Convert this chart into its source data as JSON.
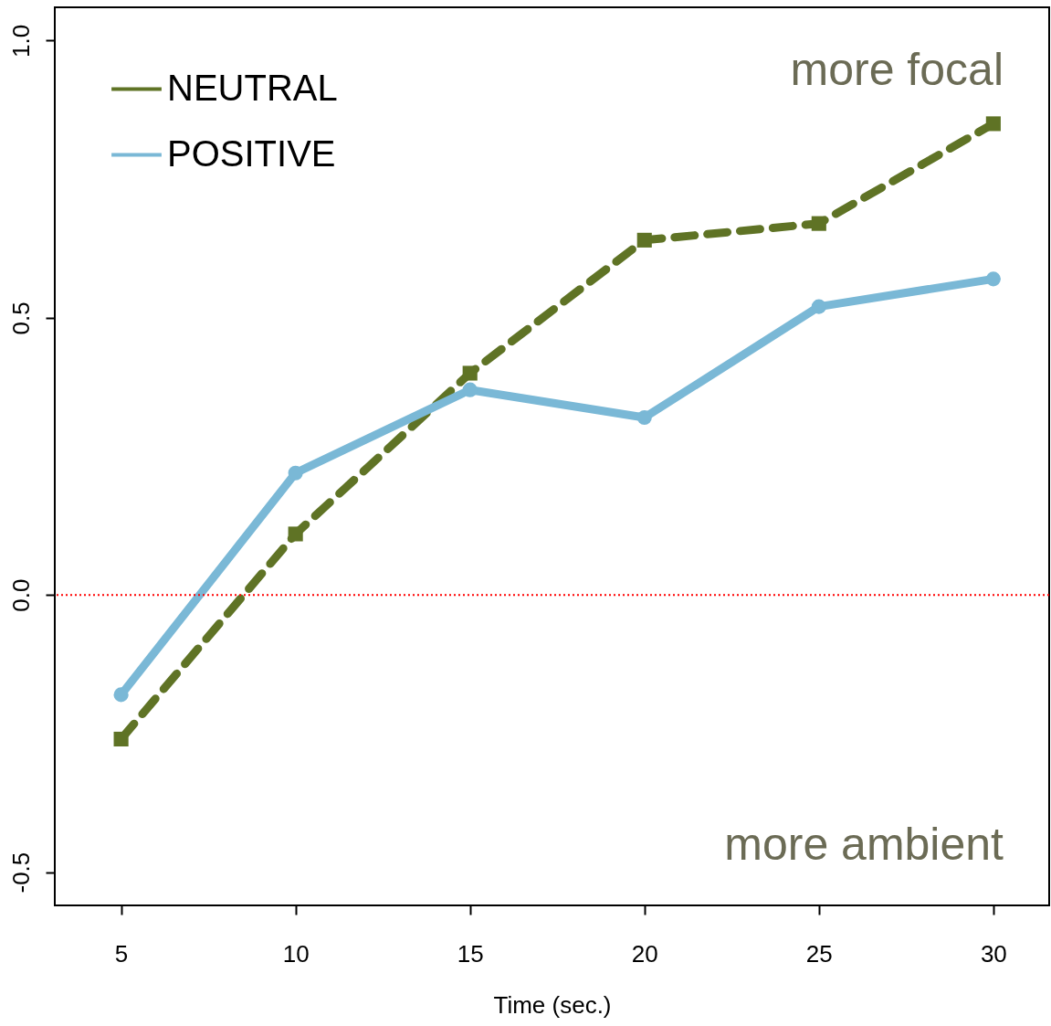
{
  "chart_data": {
    "type": "line",
    "xlabel": "Time (sec.)",
    "x": [
      5,
      10,
      15,
      20,
      25,
      30
    ],
    "series": [
      {
        "name": "NEUTRAL",
        "color": "#5f7325",
        "line_style": "dashed",
        "marker": "square",
        "values": [
          -0.26,
          0.11,
          0.4,
          0.64,
          0.67,
          0.85
        ]
      },
      {
        "name": "POSITIVE",
        "color": "#7ab8d6",
        "line_style": "solid",
        "marker": "circle",
        "values": [
          -0.18,
          0.22,
          0.37,
          0.32,
          0.52,
          0.57
        ]
      }
    ],
    "xlim": [
      3.1,
      31.6
    ],
    "xticks": [
      5,
      10,
      15,
      20,
      25,
      30
    ],
    "ylim": [
      -0.56,
      1.06
    ],
    "yticks": [
      {
        "value": -0.5,
        "label": "-0.5"
      },
      {
        "value": 0,
        "label": "0.0"
      },
      {
        "value": 0.5,
        "label": "0.5"
      },
      {
        "value": 1,
        "label": "1.0"
      }
    ],
    "ref_lines": [
      {
        "axis": "y",
        "value": 0,
        "color": "#ff0000",
        "line_style": "dotted"
      }
    ],
    "annotations": [
      "more focal",
      "more ambient"
    ],
    "legend": "top left",
    "grid": false
  }
}
